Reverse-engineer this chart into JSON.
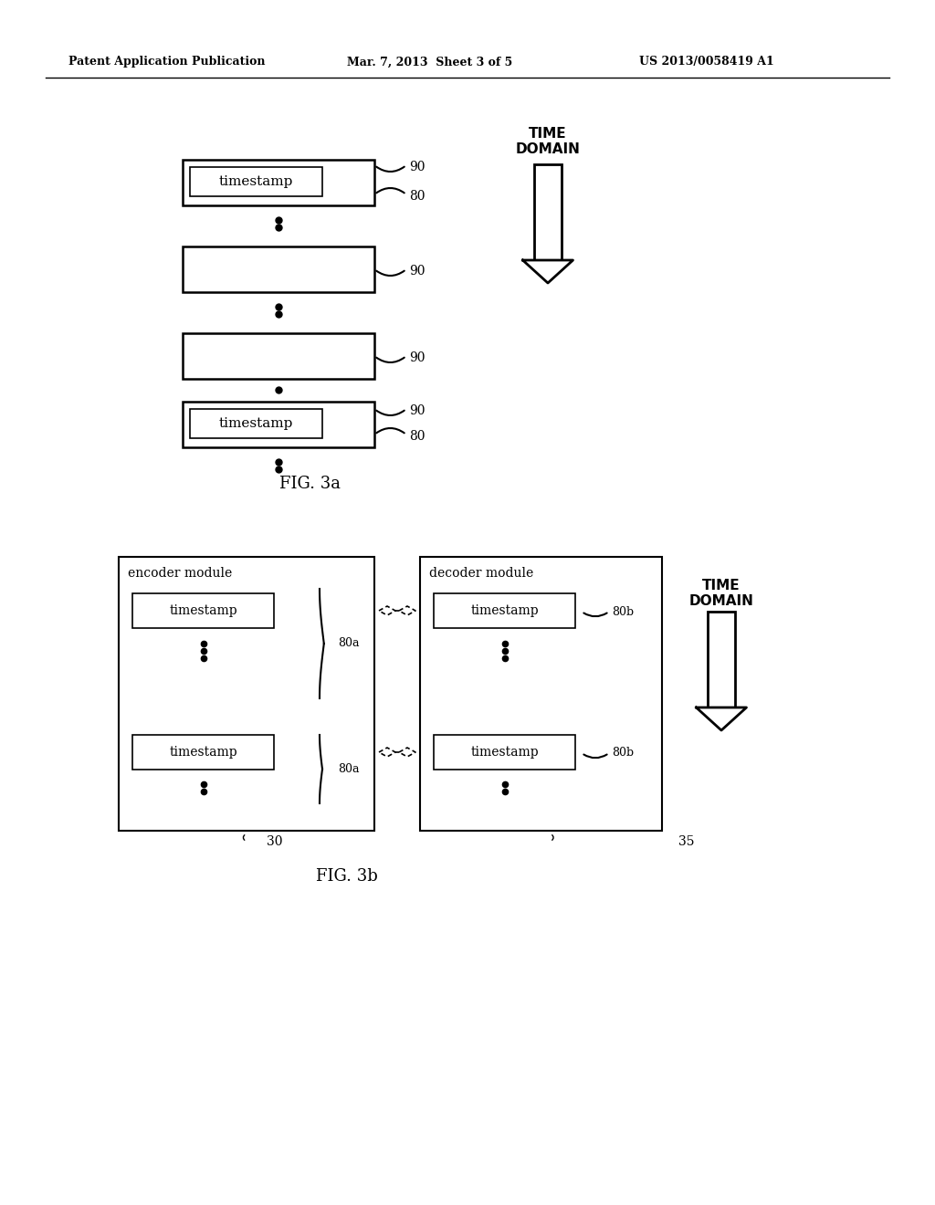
{
  "bg_color": "#ffffff",
  "header_left": "Patent Application Publication",
  "header_mid": "Mar. 7, 2013  Sheet 3 of 5",
  "header_right": "US 2013/0058419 A1",
  "fig3a_caption": "FIG. 3a",
  "fig3b_caption": "FIG. 3b",
  "time_domain_label": "TIME\nDOMAIN"
}
